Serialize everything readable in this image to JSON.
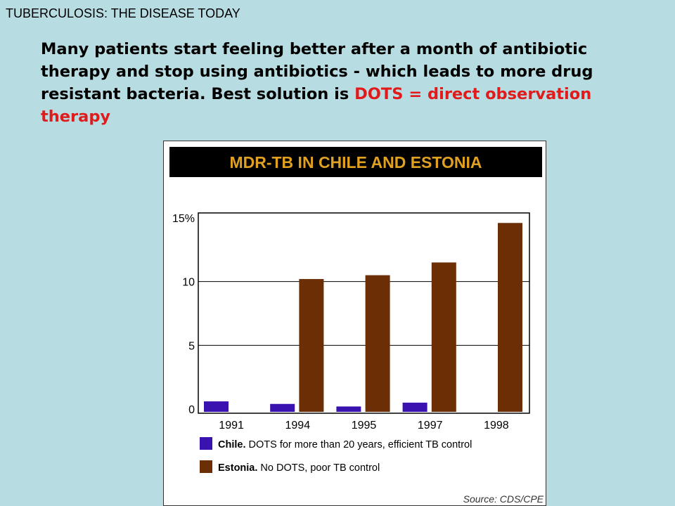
{
  "slide": {
    "header": "TUBERCULOSIS: THE DISEASE TODAY",
    "body_text": "Many patients start feeling better after a month of antibiotic therapy and stop using antibiotics - which leads to more drug resistant bacteria.  Best solution is",
    "highlight_text": "DOTS = direct observation therapy"
  },
  "colors": {
    "background": "#b7dde2",
    "highlight": "#e11b1b",
    "chile": "#3a12b0",
    "estonia": "#6b2e05",
    "title_bar": "#000000",
    "title_text": "#e0a020"
  },
  "chart_data": {
    "type": "bar",
    "title": "MDR-TB IN CHILE AND ESTONIA",
    "categories": [
      "1991",
      "1994",
      "1995",
      "1997",
      "1998"
    ],
    "series": [
      {
        "name": "Chile. DOTS for more than 20 years, efficient TB control",
        "name_bold": "Chile.",
        "name_rest": " DOTS for more than 20 years, efficient TB control",
        "values": [
          0.6,
          0.4,
          0.2,
          0.5,
          null
        ]
      },
      {
        "name": "Estonia. No DOTS, poor TB control",
        "name_bold": "Estonia.",
        "name_rest": " No DOTS, poor TB control",
        "values": [
          null,
          10.2,
          10.5,
          11.5,
          14.6
        ]
      }
    ],
    "yticks": [
      "0",
      "5",
      "10",
      "15%"
    ],
    "ytick_values": [
      0,
      5,
      10,
      15
    ],
    "ylim": [
      0,
      15
    ],
    "grid": true,
    "legend_position": "bottom",
    "source": "Source: CDS/CPE"
  }
}
